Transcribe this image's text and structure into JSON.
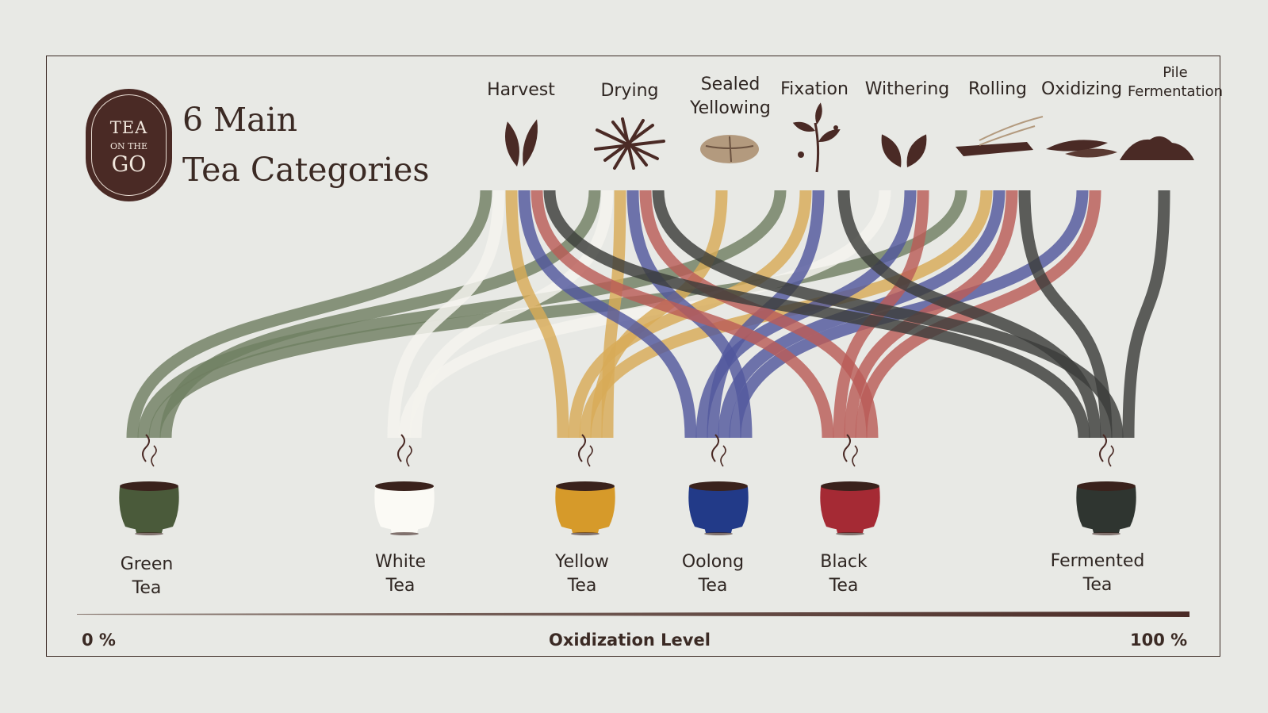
{
  "brand": {
    "line1": "TEA",
    "line2": "ON THE",
    "line3": "GO"
  },
  "title": {
    "line1": "6 Main",
    "line2": "Tea Categories"
  },
  "steps": [
    {
      "id": "harvest",
      "label": "Harvest"
    },
    {
      "id": "drying",
      "label": "Drying"
    },
    {
      "id": "sealed",
      "label_l1": "Sealed",
      "label_l2": "Yellowing"
    },
    {
      "id": "fixation",
      "label": "Fixation"
    },
    {
      "id": "withering",
      "label": "Withering"
    },
    {
      "id": "rolling",
      "label": "Rolling"
    },
    {
      "id": "oxidizing",
      "label": "Oxidizing"
    },
    {
      "id": "pile",
      "label_l1": "Pile",
      "label_l2": "Fermentation"
    }
  ],
  "categories": [
    {
      "id": "green",
      "l1": "Green",
      "l2": "Tea",
      "color": "#4a5a3a",
      "flow": "#6a7a5c"
    },
    {
      "id": "white",
      "l1": "White",
      "l2": "Tea",
      "color": "#fbfaf5",
      "flow": "#f6f4ee"
    },
    {
      "id": "yellow",
      "l1": "Yellow",
      "l2": "Tea",
      "color": "#d69a2a",
      "flow": "#d8a850"
    },
    {
      "id": "oolong",
      "l1": "Oolong",
      "l2": "Tea",
      "color": "#223a88",
      "flow": "#4a509a"
    },
    {
      "id": "black",
      "l1": "Black",
      "l2": "Tea",
      "color": "#a52a34",
      "flow": "#b85550"
    },
    {
      "id": "fermented",
      "l1": "Fermented",
      "l2": "Tea",
      "color": "#2f3530",
      "flow": "#333432"
    }
  ],
  "processes": {
    "green": [
      "harvest",
      "fixation",
      "rolling",
      "drying"
    ],
    "white": [
      "harvest",
      "withering",
      "drying"
    ],
    "yellow": [
      "harvest",
      "fixation",
      "rolling",
      "sealed",
      "drying"
    ],
    "oolong": [
      "harvest",
      "withering",
      "fixation",
      "rolling",
      "oxidizing",
      "drying"
    ],
    "black": [
      "harvest",
      "withering",
      "rolling",
      "oxidizing",
      "drying"
    ],
    "fermented": [
      "harvest",
      "fixation",
      "rolling",
      "drying",
      "pile"
    ]
  },
  "axis": {
    "left": "0 %",
    "title": "Oxidization Level",
    "right": "100 %"
  },
  "icons": {
    "harvest": "tea-leaves-icon",
    "drying": "dried-leaves-icon",
    "sealed": "sealed-package-icon",
    "fixation": "tea-sprig-icon",
    "withering": "wilting-leaves-icon",
    "rolling": "hand-rolling-icon",
    "oxidizing": "oxidized-leaves-icon",
    "pile": "leaf-pile-icon",
    "cup": "tea-cup-icon"
  }
}
